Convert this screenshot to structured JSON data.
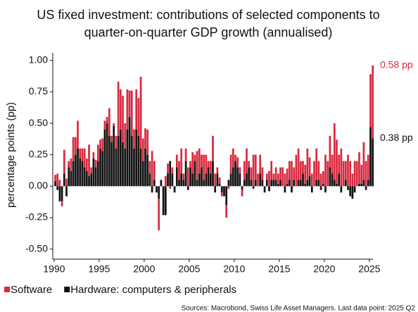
{
  "chart_data": {
    "type": "stacked_bar",
    "title": [
      "US fixed investment: contributions of selected components to",
      "quarter-on-quarter GDP growth (annualised)"
    ],
    "y_label": "percentage points (pp)",
    "source": "Sources: Macrobond, Swiss Life Asset Managers. Last data point: 2025 Q2",
    "annotations": [
      "0.58 pp",
      "0.38 pp"
    ],
    "xlim": [
      1989.85,
      2025.4
    ],
    "xticks": [
      1990,
      1995,
      2000,
      2005,
      2010,
      2015,
      2020,
      2025
    ],
    "ylim": [
      -0.58,
      1.06
    ],
    "yticks": [
      {
        "value": -0.5,
        "label": "-0.50"
      },
      -0.25,
      {
        "value": 0,
        "label": "0.00"
      },
      0.25,
      {
        "value": 0.5,
        "label": "0.50"
      },
      0.75,
      {
        "value": 1,
        "label": "1.00"
      }
    ],
    "legend": "bottom",
    "x": [
      1990,
      1990.25,
      1990.5,
      1990.75,
      1991,
      1991.25,
      1991.5,
      1991.75,
      1992,
      1992.25,
      1992.5,
      1992.75,
      1993,
      1993.25,
      1993.5,
      1993.75,
      1994,
      1994.25,
      1994.5,
      1994.75,
      1995,
      1995.25,
      1995.5,
      1995.75,
      1996,
      1996.25,
      1996.5,
      1996.75,
      1997,
      1997.25,
      1997.5,
      1997.75,
      1998,
      1998.25,
      1998.5,
      1998.75,
      1999,
      1999.25,
      1999.5,
      1999.75,
      2000,
      2000.25,
      2000.5,
      2000.75,
      2001,
      2001.25,
      2001.5,
      2001.75,
      2002,
      2002.25,
      2002.5,
      2002.75,
      2003,
      2003.25,
      2003.5,
      2003.75,
      2004,
      2004.25,
      2004.5,
      2004.75,
      2005,
      2005.25,
      2005.5,
      2005.75,
      2006,
      2006.25,
      2006.5,
      2006.75,
      2007,
      2007.25,
      2007.5,
      2007.75,
      2008,
      2008.25,
      2008.5,
      2008.75,
      2009,
      2009.25,
      2009.5,
      2009.75,
      2010,
      2010.25,
      2010.5,
      2010.75,
      2011,
      2011.25,
      2011.5,
      2011.75,
      2012,
      2012.25,
      2012.5,
      2012.75,
      2013,
      2013.25,
      2013.5,
      2013.75,
      2014,
      2014.25,
      2014.5,
      2014.75,
      2015,
      2015.25,
      2015.5,
      2015.75,
      2016,
      2016.25,
      2016.5,
      2016.75,
      2017,
      2017.25,
      2017.5,
      2017.75,
      2018,
      2018.25,
      2018.5,
      2018.75,
      2019,
      2019.25,
      2019.5,
      2019.75,
      2020,
      2020.25,
      2020.5,
      2020.75,
      2021,
      2021.25,
      2021.5,
      2021.75,
      2022,
      2022.25,
      2022.5,
      2022.75,
      2023,
      2023.25,
      2023.5,
      2023.75,
      2024,
      2024.25,
      2024.5,
      2024.75,
      2025,
      2025.25
    ],
    "series": [
      {
        "name": "Hardware: computers & peripherals",
        "color": "#111111",
        "values": [
          0.04,
          -0.03,
          -0.12,
          -0.12,
          0.1,
          -0.08,
          0.15,
          0.12,
          0.2,
          0.25,
          0.3,
          0.22,
          0.2,
          0.15,
          0.12,
          0.08,
          0.1,
          0.22,
          0.15,
          0.2,
          0.3,
          0.28,
          0.45,
          0.5,
          0.4,
          0.35,
          0.48,
          0.3,
          0.4,
          0.45,
          0.35,
          0.3,
          0.45,
          0.55,
          0.4,
          0.3,
          0.45,
          0.4,
          0.3,
          0.2,
          0.3,
          0.25,
          0.1,
          -0.05,
          0.05,
          -0.05,
          -0.1,
          0.05,
          -0.23,
          -0.23,
          0.1,
          0.2,
          0.1,
          -0.05,
          0.15,
          0.05,
          0.1,
          0.05,
          0.2,
          -0.03,
          0.15,
          0.1,
          0.2,
          0.05,
          0.1,
          0.15,
          0.05,
          0.1,
          0.15,
          0.1,
          0.2,
          -0.05,
          0.1,
          0.02,
          -0.05,
          -0.08,
          -0.15,
          0.05,
          0.1,
          0.15,
          0.2,
          0.15,
          0.1,
          -0.03,
          0.05,
          0.1,
          0.15,
          0.05,
          -0.02,
          0.05,
          0.0,
          0.1,
          0.05,
          -0.05,
          0.05,
          -0.04,
          0.05,
          0.05,
          0.05,
          0.02,
          0.05,
          0.0,
          -0.05,
          0.02,
          0.05,
          -0.05,
          0.05,
          0.0,
          0.05,
          0.05,
          0.1,
          0.02,
          0.05,
          0.08,
          -0.05,
          0.0,
          0.05,
          0.05,
          -0.03,
          0.02,
          -0.05,
          0.0,
          0.15,
          0.1,
          0.05,
          0.02,
          0.1,
          -0.05,
          0.0,
          0.05,
          -0.03,
          -0.08,
          -0.1,
          -0.05,
          0.0,
          0.02,
          0.02,
          0.05,
          -0.03,
          0.05,
          0.47,
          0.38
        ]
      },
      {
        "name": "Software",
        "color": "#d9293f",
        "values": [
          0.05,
          0.1,
          0.05,
          -0.04,
          0.19,
          0.06,
          0.05,
          0.1,
          0.19,
          0.14,
          0.22,
          0.08,
          0.1,
          0.15,
          0.1,
          0.25,
          0.05,
          0.05,
          0.06,
          0.13,
          0.07,
          0.1,
          0.07,
          0.05,
          0.22,
          0.05,
          0.02,
          0.1,
          0.43,
          0.32,
          0.37,
          0.2,
          0.32,
          0.21,
          0.36,
          0.15,
          0.32,
          0.3,
          0.57,
          0.18,
          0.16,
          0.2,
          0.1,
          0.28,
          0.15,
          0.0,
          -0.25,
          0.0,
          0.0,
          0.08,
          0.08,
          -0.02,
          0.05,
          0.0,
          0.1,
          0.15,
          0.2,
          0.05,
          0.1,
          0.15,
          0.05,
          0.17,
          0.05,
          0.23,
          0.2,
          0.1,
          0.2,
          0.15,
          0.05,
          0.1,
          0.2,
          0.1,
          0.05,
          0.05,
          -0.03,
          0.0,
          -0.1,
          -0.02,
          0.15,
          0.15,
          0.05,
          0.08,
          0.05,
          -0.05,
          0.15,
          0.2,
          0.05,
          0.1,
          0.25,
          0.2,
          0.1,
          0.15,
          0.1,
          0.0,
          0.05,
          0.12,
          0.15,
          0.05,
          0.1,
          0.08,
          0.1,
          0.15,
          0.1,
          0.12,
          0.15,
          0.2,
          0.1,
          0.25,
          0.25,
          0.15,
          0.1,
          0.15,
          0.25,
          0.15,
          0.1,
          0.2,
          0.25,
          0.15,
          0.1,
          0.1,
          0.25,
          0.2,
          0.25,
          0.15,
          0.45,
          0.35,
          0.15,
          0.3,
          0.2,
          0.15,
          0.25,
          0.2,
          0.1,
          0.2,
          0.2,
          0.25,
          0.15,
          0.3,
          0.2,
          0.2,
          0.42,
          0.58
        ]
      }
    ]
  }
}
